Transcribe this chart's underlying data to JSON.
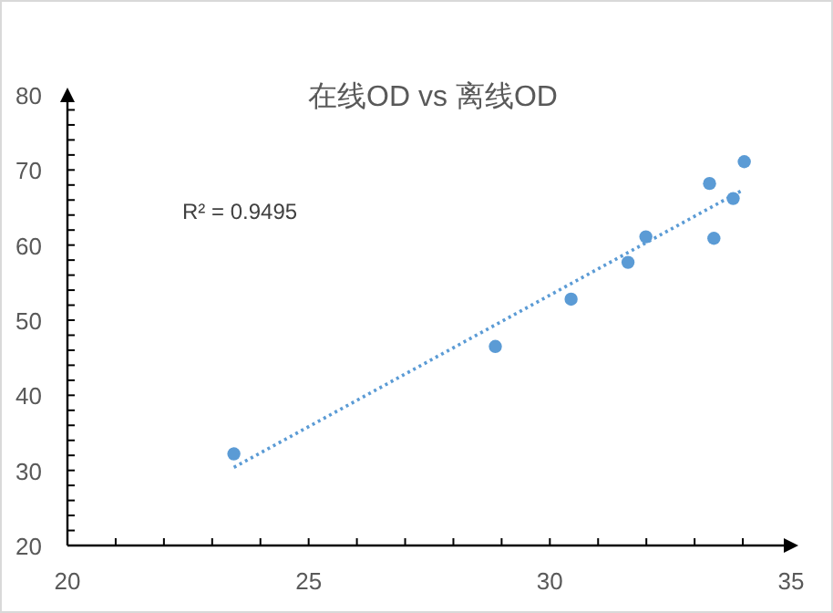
{
  "chart_data": {
    "type": "scatter",
    "title": "在线OD vs 离线OD",
    "series": [
      {
        "color": "#5b9bd5",
        "marker": "circle",
        "x": [
          23.45,
          28.87,
          30.44,
          31.62,
          31.99,
          33.31,
          33.4,
          33.8,
          34.03
        ],
        "values": [
          32.2,
          46.5,
          52.8,
          57.7,
          61.1,
          68.2,
          60.9,
          66.2,
          71.1
        ]
      },
      {
        "type": "line",
        "color": "#5b9bd5",
        "line_style": "dotted",
        "marker": "none",
        "x": [
          23.45,
          33.99
        ],
        "values": [
          30.4,
          67.3
        ]
      }
    ],
    "annotations": [
      "R² = 0.9495"
    ],
    "xlim": [
      20,
      35
    ],
    "xticks": [
      20,
      25,
      30,
      35
    ],
    "ylim": [
      20,
      80
    ],
    "yticks": [
      20,
      30,
      40,
      50,
      60,
      70,
      80
    ],
    "grid": false
  }
}
